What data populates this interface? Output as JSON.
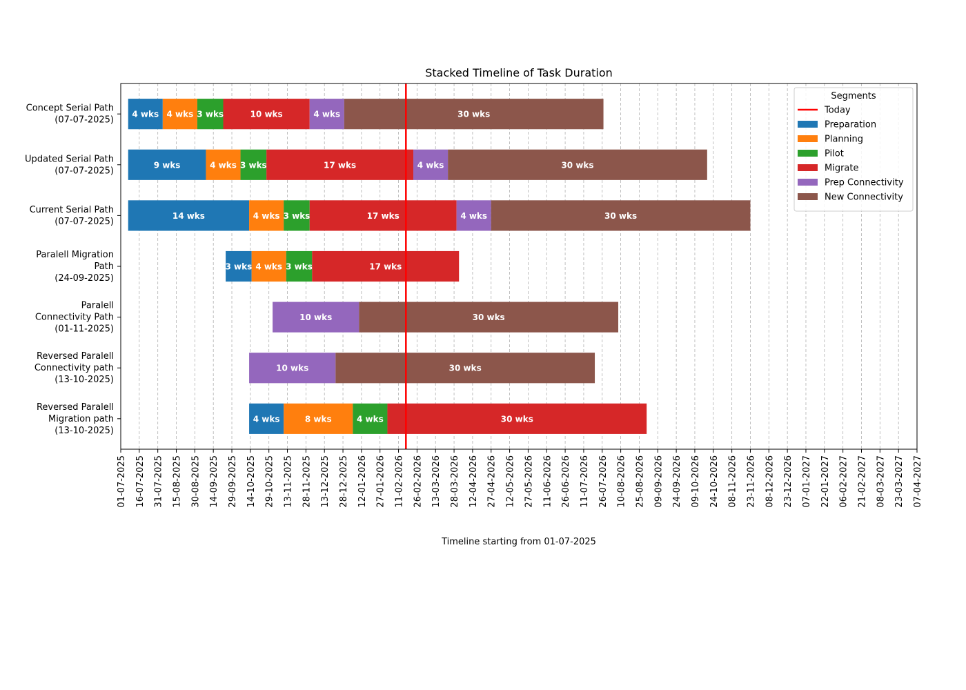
{
  "chart_data": {
    "type": "gantt",
    "title": "Stacked Timeline of Task Duration",
    "xlabel": "Timeline starting from 01-07-2025",
    "categories": [
      "Concept Serial Path\n(07-07-2025)",
      "Updated Serial Path\n(07-07-2025)",
      "Current Serial Path\n(07-07-2025)",
      "Paralell Migration\nPath\n(24-09-2025)",
      "Paralell\nConnectivity Path\n(01-11-2025)",
      "Reversed Paralell\nConnectivity path\n(13-10-2025)",
      "Reversed Paralell\nMigration path\n(13-10-2025)"
    ],
    "starts": [
      "07-07-2025",
      "07-07-2025",
      "07-07-2025",
      "24-09-2025",
      "01-11-2025",
      "13-10-2025",
      "13-10-2025"
    ],
    "duration_unit_days": 7,
    "series": [
      {
        "name": "Preparation",
        "color": "#1f77b4",
        "values": [
          4,
          9,
          14,
          3,
          null,
          null,
          4
        ],
        "value_labels": [
          "4 wks",
          "9 wks",
          "14 wks",
          "3 wks",
          null,
          null,
          "4 wks"
        ]
      },
      {
        "name": "Planning",
        "color": "#ff7f0e",
        "values": [
          4,
          4,
          4,
          4,
          null,
          null,
          8
        ],
        "value_labels": [
          "4 wks",
          "4 wks",
          "4 wks",
          "4 wks",
          null,
          null,
          "8 wks"
        ]
      },
      {
        "name": "Pilot",
        "color": "#2ca02c",
        "values": [
          3,
          3,
          3,
          3,
          null,
          null,
          4
        ],
        "value_labels": [
          "3 wks",
          "3 wks",
          "3 wks",
          "3 wks",
          null,
          null,
          "4 wks"
        ]
      },
      {
        "name": "Migrate",
        "color": "#d62728",
        "values": [
          10,
          17,
          17,
          17,
          null,
          null,
          30
        ],
        "value_labels": [
          "10 wks",
          "17 wks",
          "17 wks",
          "17 wks",
          null,
          null,
          "30 wks"
        ]
      },
      {
        "name": "Prep Connectivity",
        "color": "#9467bd",
        "values": [
          4,
          4,
          4,
          null,
          10,
          10,
          null
        ],
        "value_labels": [
          "4 wks",
          "4 wks",
          "4 wks",
          null,
          "10 wks",
          "10 wks",
          null
        ]
      },
      {
        "name": "New Connectivity",
        "color": "#8c564b",
        "values": [
          30,
          30,
          30,
          null,
          30,
          30,
          null
        ],
        "value_labels": [
          "30 wks",
          "30 wks",
          "30 wks",
          null,
          "30 wks",
          "30 wks",
          null
        ]
      }
    ],
    "today": {
      "name": "Today",
      "date": "17-02-2026",
      "color": "#ff0000"
    },
    "legend_title": "Segments",
    "legend": "upper right",
    "grid": true,
    "xlim": [
      "01-07-2025",
      "07-04-2027"
    ],
    "xticks": [
      "01-07-2025",
      "16-07-2025",
      "31-07-2025",
      "15-08-2025",
      "30-08-2025",
      "14-09-2025",
      "29-09-2025",
      "14-10-2025",
      "29-10-2025",
      "13-11-2025",
      "28-11-2025",
      "13-12-2025",
      "28-12-2025",
      "12-01-2026",
      "27-01-2026",
      "11-02-2026",
      "26-02-2026",
      "13-03-2026",
      "28-03-2026",
      "12-04-2026",
      "27-04-2026",
      "12-05-2026",
      "27-05-2026",
      "11-06-2026",
      "26-06-2026",
      "11-07-2026",
      "26-07-2026",
      "10-08-2026",
      "25-08-2026",
      "09-09-2026",
      "24-09-2026",
      "09-10-2026",
      "24-10-2026",
      "08-11-2026",
      "23-11-2026",
      "08-12-2026",
      "23-12-2026",
      "07-01-2027",
      "22-01-2027",
      "06-02-2027",
      "21-02-2027",
      "08-03-2027",
      "23-03-2027",
      "07-04-2027"
    ]
  }
}
